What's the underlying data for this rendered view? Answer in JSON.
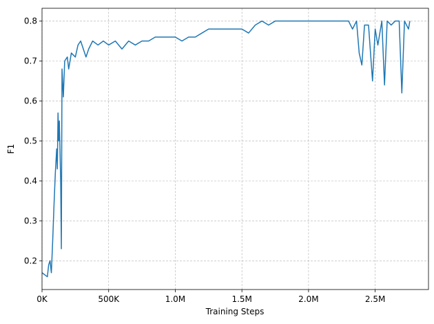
{
  "chart_data": {
    "type": "line",
    "x_label": "Training Steps",
    "y_label": "F1",
    "x": [
      0,
      20000,
      40000,
      50000,
      60000,
      70000,
      80000,
      90000,
      100000,
      110000,
      115000,
      120000,
      125000,
      130000,
      140000,
      145000,
      150000,
      160000,
      170000,
      190000,
      200000,
      220000,
      250000,
      270000,
      290000,
      310000,
      330000,
      350000,
      380000,
      420000,
      460000,
      500000,
      550000,
      600000,
      650000,
      700000,
      750000,
      800000,
      850000,
      900000,
      1000000,
      1050000,
      1100000,
      1150000,
      1200000,
      1250000,
      1300000,
      1400000,
      1500000,
      1550000,
      1600000,
      1650000,
      1700000,
      1750000,
      1800000,
      1900000,
      2000000,
      2100000,
      2200000,
      2300000,
      2330000,
      2360000,
      2380000,
      2400000,
      2420000,
      2450000,
      2480000,
      2500000,
      2520000,
      2550000,
      2570000,
      2590000,
      2620000,
      2650000,
      2680000,
      2700000,
      2720000,
      2750000,
      2760000
    ],
    "series": [
      {
        "name": "F1",
        "color": "#1f77b4",
        "values": [
          0.17,
          0.165,
          0.16,
          0.19,
          0.2,
          0.17,
          0.25,
          0.34,
          0.42,
          0.48,
          0.43,
          0.57,
          0.5,
          0.55,
          0.4,
          0.23,
          0.68,
          0.61,
          0.7,
          0.71,
          0.68,
          0.72,
          0.71,
          0.74,
          0.75,
          0.73,
          0.71,
          0.73,
          0.75,
          0.74,
          0.75,
          0.74,
          0.75,
          0.73,
          0.75,
          0.74,
          0.75,
          0.75,
          0.76,
          0.76,
          0.76,
          0.75,
          0.76,
          0.76,
          0.77,
          0.78,
          0.78,
          0.78,
          0.78,
          0.77,
          0.79,
          0.8,
          0.79,
          0.8,
          0.8,
          0.8,
          0.8,
          0.8,
          0.8,
          0.8,
          0.78,
          0.8,
          0.72,
          0.69,
          0.79,
          0.79,
          0.65,
          0.78,
          0.74,
          0.8,
          0.64,
          0.8,
          0.79,
          0.8,
          0.8,
          0.62,
          0.8,
          0.78,
          0.8
        ]
      }
    ],
    "xlim": [
      0,
      2900000
    ],
    "xticks": [
      {
        "value": 0,
        "label": "0K"
      },
      {
        "value": 500000,
        "label": "500K"
      },
      {
        "value": 1000000,
        "label": "1.0M"
      },
      {
        "value": 1500000,
        "label": "1.5M"
      },
      {
        "value": 2000000,
        "label": "2.0M"
      },
      {
        "value": 2500000,
        "label": "2.5M"
      }
    ],
    "ylim": [
      0.128,
      0.832
    ],
    "yticks": [
      0.2,
      0.3,
      0.4,
      0.5,
      0.6,
      0.7,
      0.8
    ],
    "grid": true
  }
}
